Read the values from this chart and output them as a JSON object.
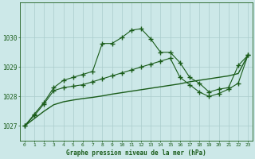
{
  "bg_color": "#cce8e8",
  "grid_color": "#aacccc",
  "line_color": "#1a5c1a",
  "title": "Graphe pression niveau de la mer (hPa)",
  "xlabel_hours": [
    0,
    1,
    2,
    3,
    4,
    5,
    6,
    7,
    8,
    9,
    10,
    11,
    12,
    13,
    14,
    15,
    16,
    17,
    18,
    19,
    20,
    21,
    22,
    23
  ],
  "ylim": [
    1026.5,
    1031.2
  ],
  "yticks": [
    1027,
    1028,
    1029,
    1030
  ],
  "series1": [
    1027.0,
    1027.4,
    1027.8,
    1028.3,
    1028.55,
    1028.65,
    1028.75,
    1028.85,
    1029.8,
    1029.8,
    1030.0,
    1030.25,
    1030.3,
    1029.95,
    1029.5,
    1029.5,
    1029.15,
    1028.65,
    1028.45,
    1028.15,
    1028.25,
    1028.3,
    1029.05,
    1029.4
  ],
  "series2": [
    1027.0,
    1027.35,
    1027.75,
    1028.2,
    1028.3,
    1028.35,
    1028.4,
    1028.5,
    1028.6,
    1028.7,
    1028.8,
    1028.9,
    1029.0,
    1029.1,
    1029.2,
    1029.3,
    1028.65,
    1028.4,
    1028.15,
    1028.0,
    1028.1,
    1028.25,
    1028.45,
    1029.4
  ],
  "series3_smooth": [
    1027.0,
    1027.25,
    1027.5,
    1027.72,
    1027.82,
    1027.88,
    1027.93,
    1027.97,
    1028.02,
    1028.08,
    1028.13,
    1028.18,
    1028.23,
    1028.28,
    1028.33,
    1028.38,
    1028.43,
    1028.5,
    1028.55,
    1028.6,
    1028.65,
    1028.7,
    1028.78,
    1029.4
  ],
  "figsize": [
    3.2,
    2.0
  ],
  "dpi": 100
}
